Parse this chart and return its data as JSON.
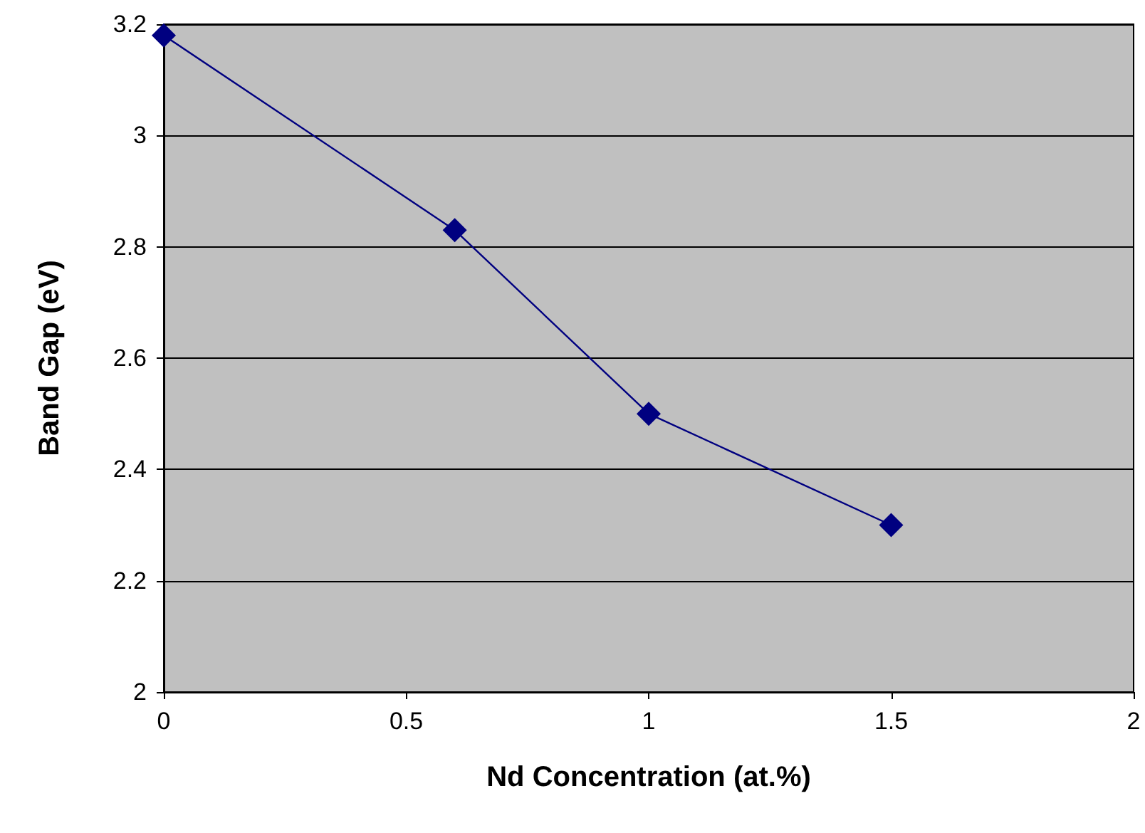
{
  "chart_data": {
    "type": "line",
    "xlabel": "Nd Concentration (at.%)",
    "ylabel": "Band Gap (eV)",
    "x": [
      0,
      0.6,
      1,
      1.5
    ],
    "series": [
      {
        "color": "#000080",
        "values": [
          3.18,
          2.83,
          2.5,
          2.3
        ]
      }
    ],
    "xlim": [
      0,
      2
    ],
    "xticks": [
      0,
      0.5,
      1,
      1.5,
      2
    ],
    "ylim": [
      2,
      3.2
    ],
    "yticks": [
      2,
      2.2,
      2.4,
      2.6,
      2.8,
      3,
      3.2
    ],
    "grid": "y",
    "marker": "diamond",
    "line_style": "solid"
  }
}
